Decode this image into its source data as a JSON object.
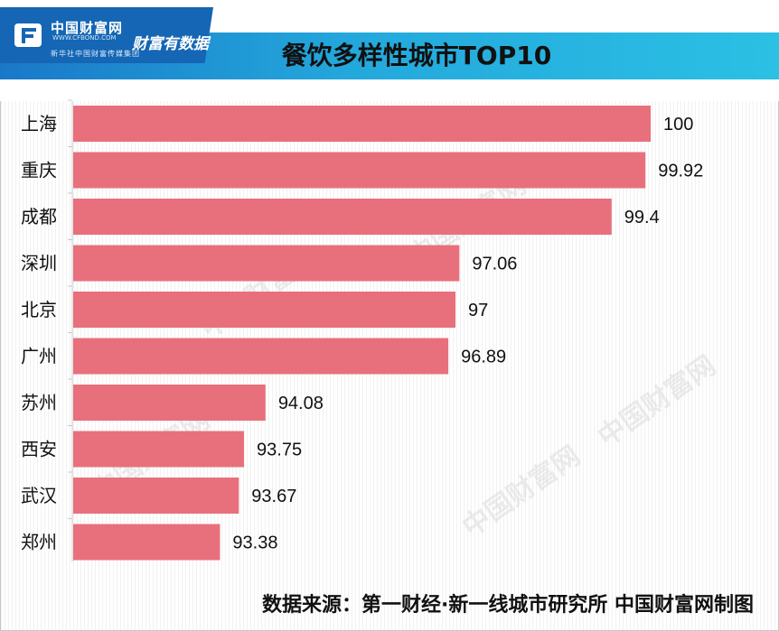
{
  "brand": {
    "logo_name": "中国财富网",
    "logo_url": "WWW.CFBOND.COM",
    "logo_subtitle": "新华社中国财富传媒集团",
    "slogan": "财富有数据"
  },
  "colors": {
    "bar": "#e8707c",
    "title_bar_start": "#1a78c8",
    "title_bar_end": "#2bc0e4",
    "logo_bg": "#1566b4"
  },
  "chart_data": {
    "type": "bar",
    "orientation": "horizontal",
    "title": "餐饮多样性城市TOP10",
    "categories": [
      "上海",
      "重庆",
      "成都",
      "深圳",
      "北京",
      "广州",
      "苏州",
      "西安",
      "武汉",
      "郑州"
    ],
    "values": [
      100,
      99.92,
      99.4,
      97.06,
      97,
      96.89,
      94.08,
      93.75,
      93.67,
      93.38
    ],
    "value_labels": [
      "100",
      "99.92",
      "99.4",
      "97.06",
      "97",
      "96.89",
      "94.08",
      "93.75",
      "93.67",
      "93.38"
    ],
    "xlim": [
      91.11,
      100
    ],
    "grid": false,
    "legend": "none"
  },
  "footer": {
    "source": "数据来源：第一财经·新一线城市研究所 中国财富网制图"
  }
}
